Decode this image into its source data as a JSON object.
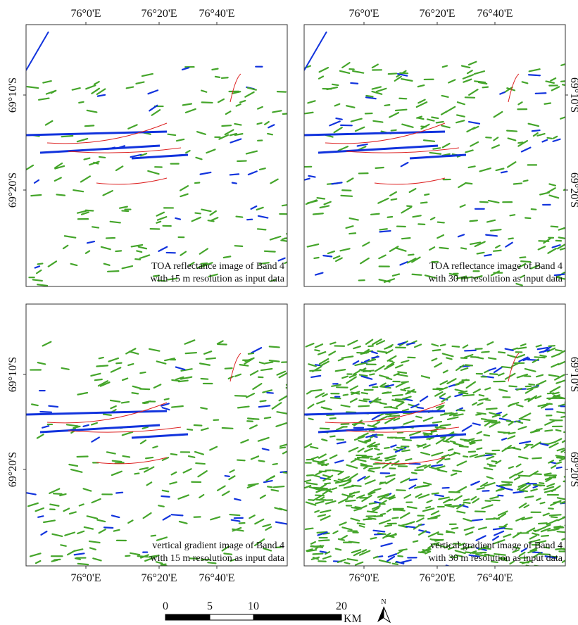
{
  "panels": [
    {
      "top_labels": [
        "76°0'E",
        "76°20'E",
        "76°40'E"
      ],
      "left_labels": [
        "69°10'S",
        "69°20'S"
      ],
      "caption": [
        "TOA reflectance image of Band 4",
        "with 15 m resolution as input data"
      ]
    },
    {
      "top_labels": [
        "76°0'E",
        "76°20'E",
        "76°40'E"
      ],
      "right_labels": [
        "69°10'S",
        "69°20'S"
      ],
      "caption": [
        "TOA reflectance image of Band 4",
        "with 30 m resolution as input data"
      ]
    },
    {
      "bottom_labels": [
        "76°0'E",
        "76°20'E",
        "76°40'E"
      ],
      "left_labels": [
        "69°10'S",
        "69°20'S"
      ],
      "caption": [
        "vertical gradient image of Band 4",
        "with 15 m resolution as input data"
      ]
    },
    {
      "bottom_labels": [
        "76°0'E",
        "76°20'E",
        "76°40'E"
      ],
      "right_labels": [
        "69°10'S",
        "69°20'S"
      ],
      "caption": [
        "vertical gradient image of Band 4",
        "with 30 m resolution as input data"
      ]
    }
  ],
  "scale_bar": {
    "labels": [
      "0",
      "5",
      "10",
      "20"
    ],
    "unit": "KM"
  },
  "north_arrow": "N"
}
